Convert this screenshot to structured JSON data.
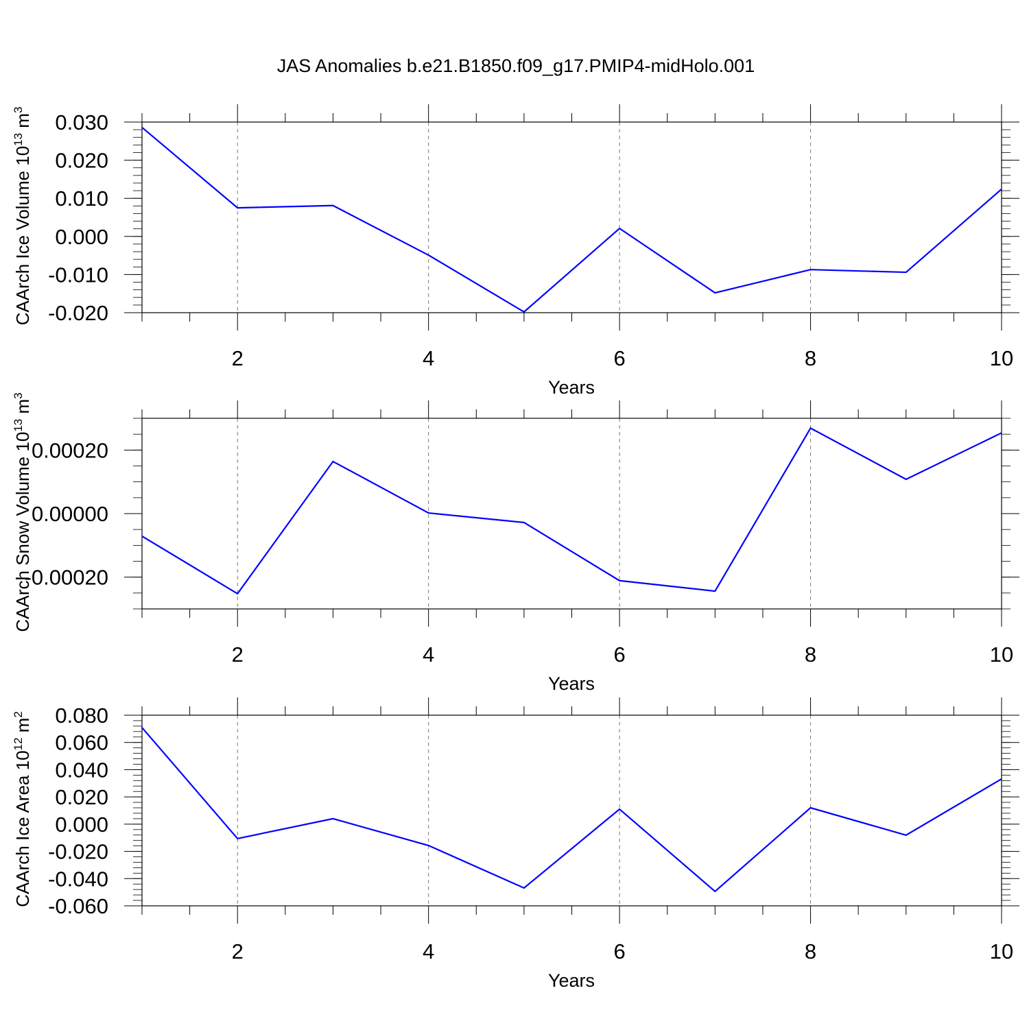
{
  "title": "JAS Anomalies b.e21.B1850.f09_g17.PMIP4-midHolo.001",
  "colors": {
    "line": "#0000ff",
    "axis": "#000000",
    "grid": "#777777"
  },
  "chart_data": [
    {
      "type": "line",
      "xlabel": "Years",
      "ylabel": "CAArch Ice Volume 10",
      "ylabel_exp": "13",
      "ylabel_unit": " m",
      "ylabel_unit_exp": "3",
      "xlim": [
        1,
        10
      ],
      "ylim": [
        -0.02,
        0.03
      ],
      "xticks": [
        2,
        4,
        6,
        8,
        10
      ],
      "xtick_labels": [
        "2",
        "4",
        "6",
        "8",
        "10"
      ],
      "yticks": [
        -0.02,
        -0.01,
        0.0,
        0.01,
        0.02,
        0.03
      ],
      "ytick_labels": [
        "-0.020",
        "-0.010",
        "0.000",
        "0.010",
        "0.020",
        "0.030"
      ],
      "yminor_step": 0.002,
      "grid": "vertical dashed at major x ticks",
      "x": [
        1,
        2,
        3,
        4,
        5,
        6,
        7,
        8,
        9,
        10
      ],
      "y": [
        0.0286,
        0.0075,
        0.0081,
        -0.0049,
        -0.0198,
        0.0021,
        -0.0148,
        -0.0087,
        -0.0094,
        0.0124
      ]
    },
    {
      "type": "line",
      "xlabel": "Years",
      "ylabel": "CAArch Snow Volume 10",
      "ylabel_exp": "13",
      "ylabel_unit": " m",
      "ylabel_unit_exp": "3",
      "xlim": [
        1,
        10
      ],
      "ylim": [
        -0.0003,
        0.0003
      ],
      "xticks": [
        2,
        4,
        6,
        8,
        10
      ],
      "xtick_labels": [
        "2",
        "4",
        "6",
        "8",
        "10"
      ],
      "yticks": [
        -0.0002,
        0.0,
        0.0002
      ],
      "ytick_labels": [
        "-0.00020",
        "0.00000",
        "0.00020"
      ],
      "yminor_step": 5e-05,
      "grid": "vertical dashed at major x ticks",
      "x": [
        1,
        2,
        3,
        4,
        5,
        6,
        7,
        8,
        9,
        10
      ],
      "y": [
        -7.1e-05,
        -0.000252,
        0.000164,
        2e-06,
        -2.8e-05,
        -0.000211,
        -0.000244,
        0.000269,
        0.000108,
        0.000254
      ]
    },
    {
      "type": "line",
      "xlabel": "Years",
      "ylabel": "CAArch Ice Area 10",
      "ylabel_exp": "12",
      "ylabel_unit": " m",
      "ylabel_unit_exp": "2",
      "xlim": [
        1,
        10
      ],
      "ylim": [
        -0.06,
        0.08
      ],
      "xticks": [
        2,
        4,
        6,
        8,
        10
      ],
      "xtick_labels": [
        "2",
        "4",
        "6",
        "8",
        "10"
      ],
      "yticks": [
        -0.06,
        -0.04,
        -0.02,
        0.0,
        0.02,
        0.04,
        0.06,
        0.08
      ],
      "ytick_labels": [
        "-0.060",
        "-0.040",
        "-0.020",
        "0.000",
        "0.020",
        "0.040",
        "0.060",
        "0.080"
      ],
      "yminor_step": 0.004,
      "grid": "vertical dashed at major x ticks",
      "x": [
        1,
        2,
        3,
        4,
        5,
        6,
        7,
        8,
        9,
        10
      ],
      "y": [
        0.0709,
        -0.0106,
        0.004,
        -0.0157,
        -0.0469,
        0.011,
        -0.0494,
        0.012,
        -0.0081,
        0.0332
      ]
    }
  ]
}
